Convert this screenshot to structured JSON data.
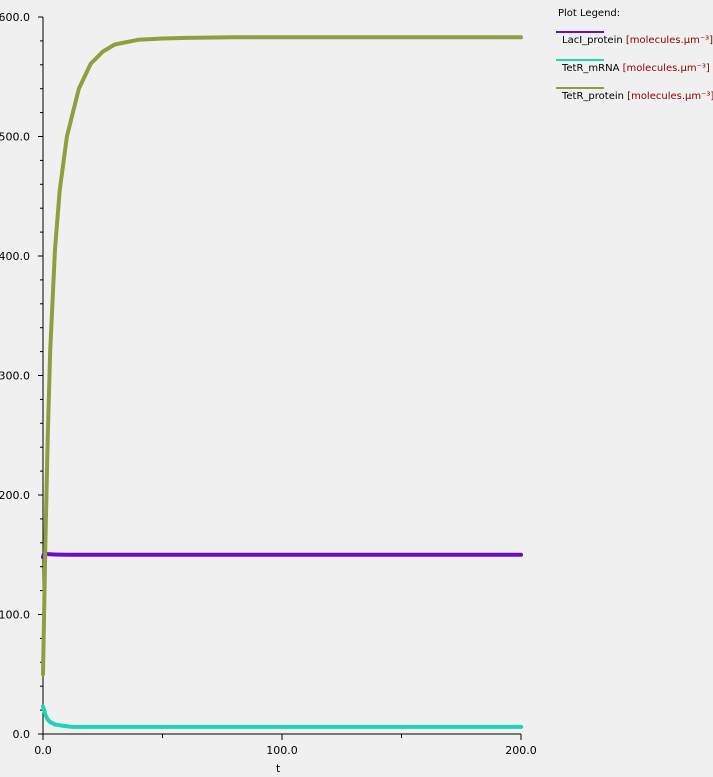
{
  "chart_data": {
    "type": "line",
    "title": "",
    "xlabel": "t",
    "ylabel": "",
    "xlim": [
      0,
      200
    ],
    "ylim": [
      0,
      600
    ],
    "x_ticks": [
      "0.0",
      "100.0",
      "200.0"
    ],
    "y_ticks": [
      "0.0",
      "100.0",
      "200.0",
      "300.0",
      "400.0",
      "500.0",
      "600.0"
    ],
    "series": [
      {
        "name": "LacI_protein",
        "unit": "[molecules.µm⁻³]",
        "color": "#6a0dc8",
        "x": [
          0,
          0.5,
          1,
          2,
          5,
          10,
          20,
          50,
          100,
          150,
          200
        ],
        "y": [
          148,
          151,
          151,
          150.5,
          150.2,
          150,
          150,
          150,
          150,
          150,
          150
        ]
      },
      {
        "name": "TetR_mRNA",
        "unit": "[molecules.µm⁻³]",
        "color": "#1fd3b8",
        "x": [
          0,
          0.5,
          1,
          2,
          3,
          5,
          8,
          12,
          20,
          50,
          100,
          150,
          200
        ],
        "y": [
          23,
          20,
          16,
          12,
          10,
          8,
          7,
          6,
          6,
          6,
          6,
          6,
          6
        ]
      },
      {
        "name": "TetR_protein",
        "unit": "[molecules.µm⁻³]",
        "color": "#8da040",
        "x": [
          0,
          1,
          2,
          3,
          5,
          7,
          10,
          15,
          20,
          25,
          30,
          40,
          50,
          60,
          80,
          100,
          150,
          200
        ],
        "y": [
          50,
          160,
          250,
          320,
          405,
          455,
          500,
          540,
          561,
          571,
          577,
          581,
          582,
          582.5,
          583,
          583,
          583,
          583
        ]
      }
    ]
  },
  "legend": {
    "title": "Plot Legend:"
  }
}
